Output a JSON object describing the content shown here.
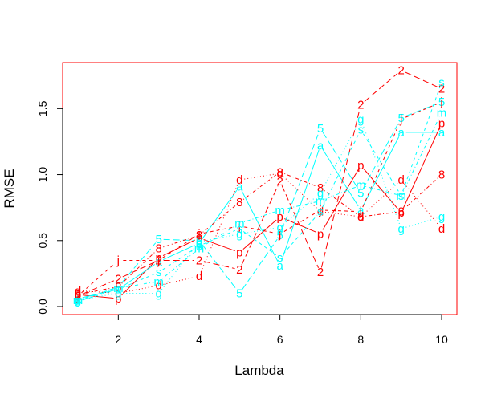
{
  "chart_data": {
    "type": "line",
    "xlabel": "Lambda",
    "ylabel": "RMSE",
    "xlim": [
      1,
      10
    ],
    "ylim": [
      0.0,
      1.8
    ],
    "xticks": [
      "2",
      "4",
      "6",
      "8",
      "10"
    ],
    "yticks": [
      "0.0",
      "0.5",
      "1.0",
      "1.5"
    ],
    "grid": false,
    "frame_color": "#ff0000",
    "x": [
      1,
      2,
      3,
      4,
      5,
      6,
      7,
      8,
      9,
      10
    ],
    "series": [
      {
        "name": "p",
        "color": "#ff0000",
        "dash": "solid",
        "values": [
          0.09,
          0.06,
          0.37,
          0.52,
          0.41,
          0.68,
          0.55,
          1.07,
          0.71,
          1.39
        ]
      },
      {
        "name": "a",
        "color": "#00ffff",
        "dash": "solid",
        "values": [
          0.06,
          0.13,
          0.34,
          0.48,
          0.91,
          0.31,
          1.22,
          0.73,
          1.32,
          1.32
        ]
      },
      {
        "name": "5",
        "color": "#00ffff",
        "dash": "longdash",
        "values": [
          0.04,
          0.15,
          0.51,
          0.5,
          0.1,
          0.54,
          1.35,
          0.86,
          1.43,
          1.55
        ]
      },
      {
        "name": "2",
        "color": "#ff0000",
        "dash": "longdash",
        "values": [
          0.08,
          0.21,
          0.35,
          0.35,
          0.28,
          0.95,
          0.26,
          1.53,
          1.79,
          1.65
        ]
      },
      {
        "name": "j",
        "color": "#ff0000",
        "dash": "dashed",
        "values": [
          0.08,
          0.35,
          0.35,
          0.55,
          0.61,
          0.55,
          0.73,
          0.72,
          1.42,
          1.55
        ]
      },
      {
        "name": "8",
        "color": "#ff0000",
        "dash": "dotdash",
        "values": [
          0.09,
          0.15,
          0.44,
          0.54,
          0.79,
          1.02,
          0.9,
          0.68,
          0.72,
          1.0
        ]
      },
      {
        "name": "d",
        "color": "#ff0000",
        "dash": "dotted",
        "values": [
          0.12,
          0.1,
          0.16,
          0.23,
          0.96,
          1.01,
          0.72,
          0.68,
          0.96,
          0.59
        ]
      },
      {
        "name": "g",
        "color": "#00ffff",
        "dash": "dotted",
        "values": [
          0.05,
          0.1,
          0.1,
          0.49,
          0.55,
          0.6,
          0.86,
          1.42,
          0.59,
          0.68
        ]
      },
      {
        "name": "m",
        "color": "#00ffff",
        "dash": "dotdash",
        "values": [
          0.05,
          0.14,
          0.19,
          0.44,
          0.63,
          0.73,
          0.8,
          0.92,
          0.84,
          1.47
        ]
      },
      {
        "name": "s",
        "color": "#00ffff",
        "dash": "dashed",
        "values": [
          0.04,
          0.13,
          0.26,
          0.46,
          0.59,
          0.37,
          0.72,
          1.34,
          0.84,
          1.7
        ]
      }
    ]
  }
}
